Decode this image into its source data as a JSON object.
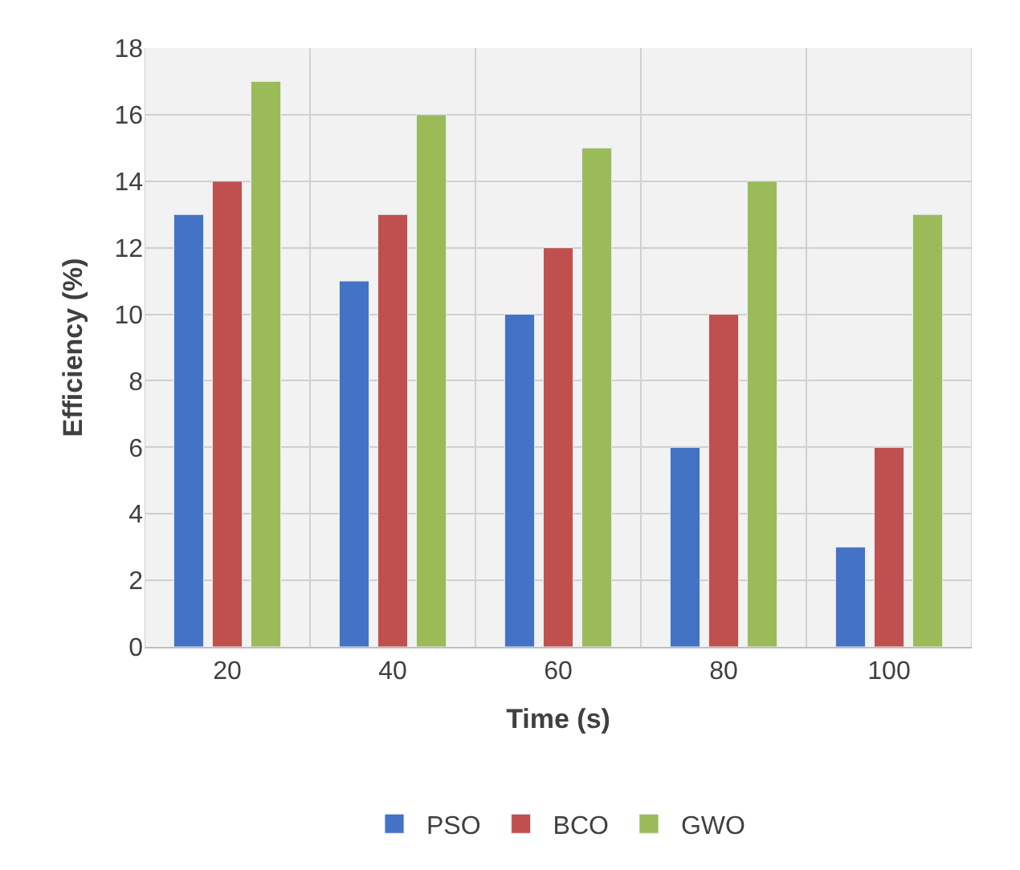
{
  "chart_data": {
    "type": "bar",
    "xlabel": "Time (s)",
    "ylabel": "Efficiency (%)",
    "categories": [
      "20",
      "40",
      "60",
      "80",
      "100"
    ],
    "series": [
      {
        "name": "PSO",
        "color": "#4472c4",
        "values": [
          13,
          11,
          10,
          6,
          3
        ]
      },
      {
        "name": "BCO",
        "color": "#c0504d",
        "values": [
          14,
          13,
          12,
          10,
          6
        ]
      },
      {
        "name": "GWO",
        "color": "#9bbb59",
        "values": [
          17,
          16,
          15,
          14,
          13
        ]
      }
    ],
    "ylim": [
      0,
      18
    ],
    "yticks": [
      0,
      2,
      4,
      6,
      8,
      10,
      12,
      14,
      16,
      18
    ],
    "grid": true,
    "legend": "bottom"
  }
}
